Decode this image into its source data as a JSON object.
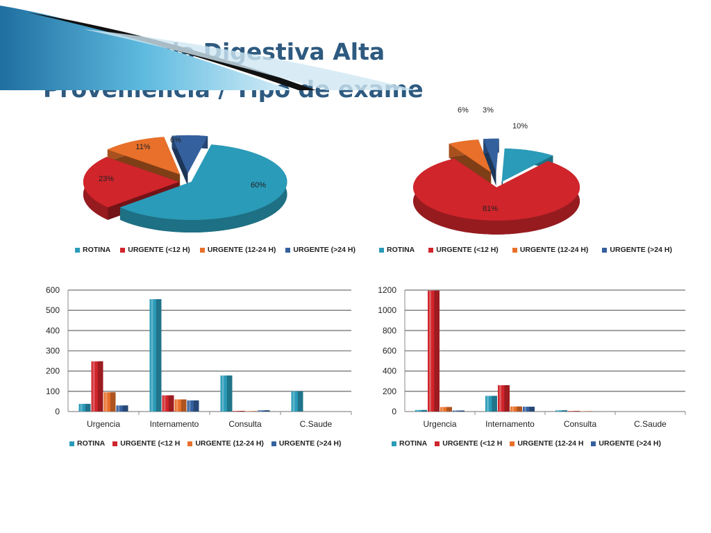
{
  "slide": {
    "title_line1": "Hemorragia Digestiva Alta",
    "title_line2": "Proveniência / Tipo de exame"
  },
  "colors": {
    "ROTINA": "#2a9bb8",
    "URGENTE_LT12": "#d0252b",
    "URGENTE_12_24": "#e8702a",
    "URGENTE_GT24": "#34609e",
    "title": "#2e5a80"
  },
  "chart_data": [
    {
      "type": "pie",
      "title": "",
      "labels": [
        "ROTINA",
        "URGENTE (<12 H)",
        "URGENTE (12-24 H)",
        "URGENTE (>24 H)"
      ],
      "values": [
        60,
        23,
        11,
        6
      ],
      "data_labels": [
        "60%",
        "23%",
        "11%",
        "6%"
      ],
      "legend": "bottom"
    },
    {
      "type": "pie",
      "title": "",
      "labels": [
        "ROTINA",
        "URGENTE (<12 H)",
        "URGENTE (12-24 H)",
        "URGENTE (>24 H)"
      ],
      "values": [
        10,
        81,
        6,
        3
      ],
      "data_labels": [
        "10%",
        "81%",
        "6%",
        "3%"
      ],
      "legend": "bottom"
    },
    {
      "type": "bar",
      "title": "",
      "categories": [
        "Urgencia",
        "Internamento",
        "Consulta",
        "C.Saude"
      ],
      "series": [
        {
          "name": "ROTINA",
          "values": [
            38,
            555,
            178,
            100
          ]
        },
        {
          "name": "URGENTE (<12 H",
          "values": [
            248,
            80,
            3,
            0
          ]
        },
        {
          "name": "URGENTE (12-24 H)",
          "values": [
            95,
            60,
            2,
            0
          ]
        },
        {
          "name": "URGENTE (>24 H)",
          "values": [
            30,
            55,
            6,
            0
          ]
        }
      ],
      "ylim": [
        0,
        600
      ],
      "yticks": [
        "0",
        "100",
        "200",
        "300",
        "400",
        "500",
        "600"
      ],
      "grid": true,
      "legend": "bottom"
    },
    {
      "type": "bar",
      "title": "",
      "categories": [
        "Urgencia",
        "Internamento",
        "Consulta",
        "C.Saude"
      ],
      "series": [
        {
          "name": "ROTINA",
          "values": [
            15,
            155,
            12,
            0
          ]
        },
        {
          "name": "URGENTE (<12 H",
          "values": [
            1195,
            260,
            5,
            0
          ]
        },
        {
          "name": "URGENTE (12-24 H",
          "values": [
            45,
            50,
            3,
            0
          ]
        },
        {
          "name": "URGENTE (>24 H)",
          "values": [
            10,
            48,
            0,
            0
          ]
        }
      ],
      "ylim": [
        0,
        1200
      ],
      "yticks": [
        "0",
        "200",
        "400",
        "600",
        "800",
        "1000",
        "1200"
      ],
      "grid": true,
      "legend": "bottom"
    }
  ]
}
